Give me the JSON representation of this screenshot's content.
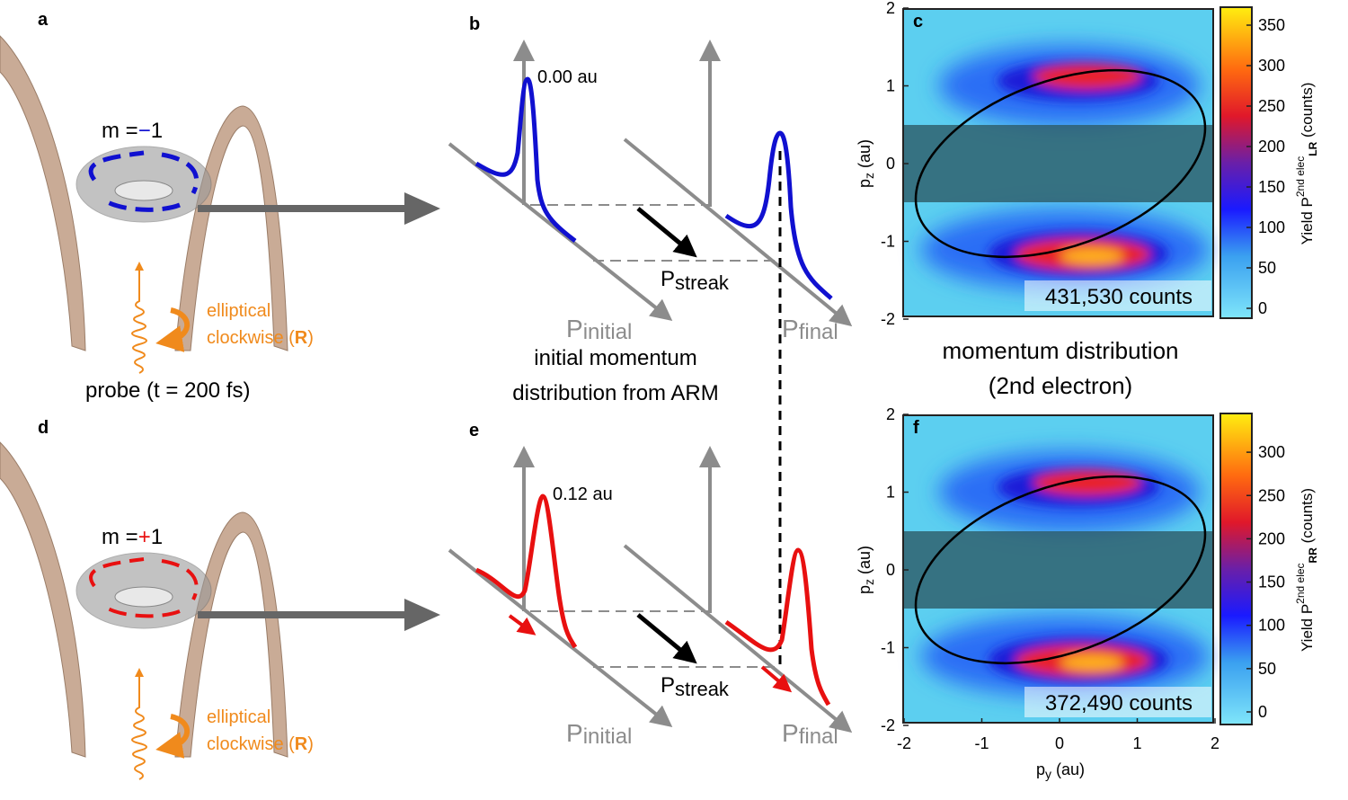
{
  "panels": {
    "a": {
      "label": "a",
      "state": [
        "m =",
        "−",
        "1"
      ],
      "polarization": [
        "elliptical",
        "clockwise (",
        "R",
        ")"
      ],
      "caption": "probe (t = 200 fs)"
    },
    "b": {
      "label": "b",
      "offset": "0.00 au",
      "streak": [
        "P",
        "streak"
      ],
      "initial": [
        "P",
        "initial"
      ],
      "final": [
        "P",
        "final"
      ],
      "caption": [
        "initial momentum",
        "distribution from ARM"
      ]
    },
    "c": {
      "label": "c",
      "y_ticks": [
        2,
        1,
        0,
        -1,
        -2
      ],
      "y_label": [
        "p",
        "z",
        " (au)"
      ],
      "counts": "431,530 counts",
      "colorbar_ticks": [
        0,
        50,
        100,
        150,
        200,
        250,
        300,
        350
      ],
      "colorbar_label": [
        "Yield P",
        "2nd elec",
        "LR",
        " (counts)"
      ]
    },
    "middle_caption": [
      "momentum distribution",
      "(2nd electron)"
    ],
    "d": {
      "label": "d",
      "state": [
        "m =",
        "+",
        "1"
      ],
      "polarization": [
        "elliptical",
        "clockwise (",
        "R",
        ")"
      ]
    },
    "e": {
      "label": "e",
      "offset": "0.12 au",
      "streak": [
        "P",
        "streak"
      ],
      "initial": [
        "P",
        "initial"
      ],
      "final": [
        "P",
        "final"
      ]
    },
    "f": {
      "label": "f",
      "y_ticks": [
        2,
        1,
        0,
        -1,
        -2
      ],
      "x_ticks": [
        -2,
        -1,
        0,
        1,
        2
      ],
      "y_label": [
        "p",
        "z",
        " (au)"
      ],
      "x_label": [
        "p",
        "y",
        " (au)"
      ],
      "counts": "372,490 counts",
      "colorbar_ticks": [
        0,
        50,
        100,
        150,
        200,
        250,
        300
      ],
      "colorbar_label": [
        "Yield P",
        "2nd elec",
        "RR",
        " (counts)"
      ]
    }
  }
}
